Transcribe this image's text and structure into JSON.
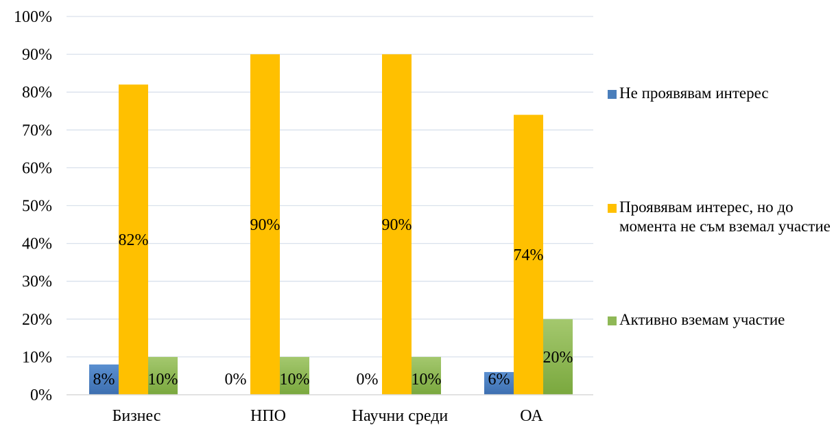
{
  "chart_data": {
    "type": "bar",
    "categories": [
      "Бизнес",
      "НПО",
      "Научни среди",
      "ОА"
    ],
    "series": [
      {
        "name": "Не проявявам интерес",
        "values": [
          8,
          0,
          0,
          6
        ],
        "labels": [
          "8%",
          "0%",
          "0%",
          "6%"
        ],
        "color": "#4a7ebb"
      },
      {
        "name": "Проявявам интерес, но до момента не съм вземал участие",
        "values": [
          82,
          90,
          90,
          74
        ],
        "labels": [
          "82%",
          "90%",
          "90%",
          "74%"
        ],
        "color": "#ffc000"
      },
      {
        "name": "Активно вземам участие",
        "values": [
          10,
          10,
          10,
          20
        ],
        "labels": [
          "10%",
          "10%",
          "10%",
          "20%"
        ],
        "color": "#8fb856"
      }
    ],
    "yticks": [
      "0%",
      "10%",
      "20%",
      "30%",
      "40%",
      "50%",
      "60%",
      "70%",
      "80%",
      "90%",
      "100%"
    ],
    "ylim": [
      0,
      100
    ],
    "grid": true,
    "legend_position": "right",
    "title": "",
    "xlabel": "",
    "ylabel": ""
  },
  "legend": {
    "items": [
      {
        "label": "Не проявявам интерес",
        "color": "#4a7ebb"
      },
      {
        "label": "Проявявам интерес, но до момента не съм вземал участие",
        "color": "#ffc000"
      },
      {
        "label": "Активно вземам участие",
        "color": "#8fb856"
      }
    ]
  }
}
